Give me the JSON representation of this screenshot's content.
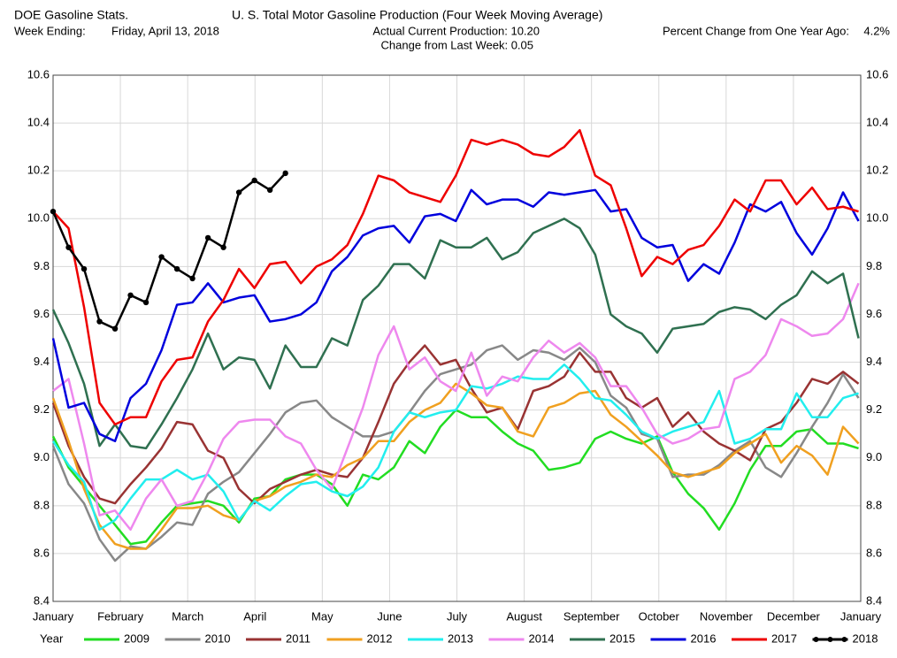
{
  "header": {
    "site": "DOE Gasoline Stats.",
    "week_label": "Week Ending:",
    "week_date": "Friday, April 13, 2018",
    "current": "Actual Current Production: 10.20",
    "change": "Change from Last Week: 0.05",
    "pct_label": "Percent Change from One Year Ago:",
    "pct_value": "4.2%"
  },
  "chart_data": {
    "type": "line",
    "title": "U. S. Total Motor Gasoline Production (Four Week Moving Average)",
    "legend_title": "Year",
    "grid": true,
    "xlim": [
      0,
      52.14
    ],
    "xticks": [
      {
        "value": 0,
        "label": "January"
      },
      {
        "value": 4.345,
        "label": "February"
      },
      {
        "value": 8.69,
        "label": "March"
      },
      {
        "value": 13.035,
        "label": "April"
      },
      {
        "value": 17.38,
        "label": "May"
      },
      {
        "value": 21.725,
        "label": "June"
      },
      {
        "value": 26.07,
        "label": "July"
      },
      {
        "value": 30.415,
        "label": "August"
      },
      {
        "value": 34.76,
        "label": "September"
      },
      {
        "value": 39.105,
        "label": "October"
      },
      {
        "value": 43.45,
        "label": "November"
      },
      {
        "value": 47.795,
        "label": "December"
      },
      {
        "value": 52.14,
        "label": "January"
      }
    ],
    "ylim": [
      8.4,
      10.6
    ],
    "yticks": [
      8.4,
      8.6,
      8.8,
      {
        "value": 9,
        "label": "9.0"
      },
      9.2,
      9.4,
      9.6,
      9.8,
      {
        "value": 10,
        "label": "10.0"
      },
      10.2,
      10.4,
      10.6
    ],
    "x": [
      0,
      1,
      2,
      3,
      4,
      5,
      6,
      7,
      8,
      9,
      10,
      11,
      12,
      13,
      14,
      15,
      16,
      17,
      18,
      19,
      20,
      21,
      22,
      23,
      24,
      25,
      26,
      27,
      28,
      29,
      30,
      31,
      32,
      33,
      34,
      35,
      36,
      37,
      38,
      39,
      40,
      41,
      42,
      43,
      44,
      45,
      46,
      47,
      48,
      49,
      50,
      51,
      52
    ],
    "series": [
      {
        "name": "2009",
        "color": "#22dd22",
        "values": [
          9.09,
          8.96,
          8.88,
          8.8,
          8.72,
          8.64,
          8.65,
          8.73,
          8.8,
          8.81,
          8.82,
          8.8,
          8.73,
          8.83,
          8.84,
          8.91,
          8.93,
          8.93,
          8.89,
          8.8,
          8.93,
          8.91,
          8.96,
          9.07,
          9.02,
          9.13,
          9.2,
          9.17,
          9.17,
          9.11,
          9.06,
          9.03,
          8.95,
          8.96,
          8.98,
          9.08,
          9.11,
          9.08,
          9.06,
          9.09,
          8.94,
          8.85,
          8.79,
          8.7,
          8.81,
          8.95,
          9.05,
          9.05,
          9.11,
          9.12,
          9.06,
          9.06,
          9.04
        ]
      },
      {
        "name": "2010",
        "color": "#888888",
        "values": [
          9.05,
          8.89,
          8.81,
          8.66,
          8.57,
          8.63,
          8.62,
          8.67,
          8.73,
          8.72,
          8.85,
          8.9,
          8.94,
          9.02,
          9.1,
          9.19,
          9.23,
          9.24,
          9.17,
          9.13,
          9.09,
          9.09,
          9.11,
          9.19,
          9.28,
          9.35,
          9.37,
          9.39,
          9.45,
          9.47,
          9.41,
          9.45,
          9.44,
          9.41,
          9.46,
          9.4,
          9.26,
          9.21,
          9.1,
          9.08,
          8.92,
          8.93,
          8.93,
          8.97,
          9.03,
          9.07,
          8.96,
          8.92,
          9.02,
          9.13,
          9.23,
          9.35,
          9.25
        ]
      },
      {
        "name": "2011",
        "color": "#993333",
        "values": [
          9.23,
          9.05,
          8.92,
          8.83,
          8.81,
          8.89,
          8.96,
          9.04,
          9.15,
          9.14,
          9.03,
          9.0,
          8.87,
          8.81,
          8.87,
          8.9,
          8.93,
          8.95,
          8.93,
          8.92,
          9.0,
          9.15,
          9.31,
          9.4,
          9.47,
          9.39,
          9.41,
          9.29,
          9.19,
          9.21,
          9.12,
          9.28,
          9.3,
          9.34,
          9.44,
          9.36,
          9.36,
          9.25,
          9.21,
          9.25,
          9.13,
          9.19,
          9.11,
          9.06,
          9.03,
          8.99,
          9.12,
          9.15,
          9.23,
          9.33,
          9.31,
          9.36,
          9.31
        ]
      },
      {
        "name": "2012",
        "color": "#f0a020",
        "values": [
          9.25,
          9.07,
          8.87,
          8.72,
          8.64,
          8.62,
          8.62,
          8.7,
          8.79,
          8.79,
          8.8,
          8.76,
          8.74,
          8.82,
          8.84,
          8.88,
          8.9,
          8.93,
          8.92,
          8.97,
          9.0,
          9.07,
          9.07,
          9.15,
          9.2,
          9.23,
          9.31,
          9.27,
          9.22,
          9.21,
          9.11,
          9.09,
          9.21,
          9.23,
          9.27,
          9.28,
          9.18,
          9.13,
          9.07,
          9.01,
          8.94,
          8.92,
          8.94,
          8.96,
          9.02,
          9.06,
          9.1,
          8.98,
          9.05,
          9.01,
          8.93,
          9.13,
          9.06
        ]
      },
      {
        "name": "2013",
        "color": "#22eeee",
        "values": [
          9.07,
          8.97,
          8.9,
          8.7,
          8.74,
          8.83,
          8.91,
          8.91,
          8.95,
          8.91,
          8.93,
          8.86,
          8.74,
          8.82,
          8.78,
          8.84,
          8.89,
          8.9,
          8.86,
          8.84,
          8.88,
          8.96,
          9.11,
          9.19,
          9.17,
          9.19,
          9.2,
          9.3,
          9.29,
          9.31,
          9.34,
          9.33,
          9.33,
          9.39,
          9.33,
          9.25,
          9.24,
          9.18,
          9.11,
          9.08,
          9.11,
          9.13,
          9.15,
          9.28,
          9.06,
          9.08,
          9.12,
          9.12,
          9.27,
          9.17,
          9.17,
          9.25,
          9.27
        ]
      },
      {
        "name": "2014",
        "color": "#ee88ee",
        "values": [
          9.28,
          9.33,
          9.06,
          8.76,
          8.78,
          8.7,
          8.83,
          8.91,
          8.8,
          8.82,
          8.94,
          9.08,
          9.15,
          9.16,
          9.16,
          9.09,
          9.06,
          8.95,
          8.87,
          9.04,
          9.21,
          9.43,
          9.55,
          9.37,
          9.42,
          9.32,
          9.28,
          9.44,
          9.26,
          9.34,
          9.32,
          9.42,
          9.49,
          9.44,
          9.48,
          9.42,
          9.3,
          9.3,
          9.21,
          9.1,
          9.06,
          9.08,
          9.12,
          9.13,
          9.33,
          9.36,
          9.43,
          9.58,
          9.55,
          9.51,
          9.52,
          9.58,
          9.73
        ]
      },
      {
        "name": "2015",
        "color": "#2f7050",
        "values": [
          9.62,
          9.48,
          9.31,
          9.05,
          9.14,
          9.05,
          9.04,
          9.14,
          9.25,
          9.37,
          9.52,
          9.37,
          9.42,
          9.41,
          9.29,
          9.47,
          9.38,
          9.38,
          9.5,
          9.47,
          9.66,
          9.72,
          9.81,
          9.81,
          9.75,
          9.91,
          9.88,
          9.88,
          9.92,
          9.83,
          9.86,
          9.94,
          9.97,
          10.0,
          9.96,
          9.85,
          9.6,
          9.55,
          9.52,
          9.44,
          9.54,
          9.55,
          9.56,
          9.61,
          9.63,
          9.62,
          9.58,
          9.64,
          9.68,
          9.78,
          9.73,
          9.77,
          9.5
        ]
      },
      {
        "name": "2016",
        "color": "#0000dd",
        "values": [
          9.5,
          9.21,
          9.23,
          9.1,
          9.07,
          9.25,
          9.31,
          9.45,
          9.64,
          9.65,
          9.73,
          9.65,
          9.67,
          9.68,
          9.57,
          9.58,
          9.6,
          9.65,
          9.78,
          9.84,
          9.93,
          9.96,
          9.97,
          9.9,
          10.01,
          10.02,
          9.99,
          10.12,
          10.06,
          10.08,
          10.08,
          10.05,
          10.11,
          10.1,
          10.11,
          10.12,
          10.03,
          10.04,
          9.92,
          9.88,
          9.89,
          9.74,
          9.81,
          9.77,
          9.9,
          10.06,
          10.03,
          10.07,
          9.94,
          9.85,
          9.96,
          10.11,
          9.99
        ]
      },
      {
        "name": "2017",
        "color": "#ee0000",
        "values": [
          10.03,
          9.96,
          9.63,
          9.23,
          9.14,
          9.17,
          9.17,
          9.32,
          9.41,
          9.42,
          9.57,
          9.66,
          9.79,
          9.71,
          9.81,
          9.82,
          9.73,
          9.8,
          9.83,
          9.89,
          10.02,
          10.18,
          10.16,
          10.11,
          10.09,
          10.07,
          10.18,
          10.33,
          10.31,
          10.33,
          10.31,
          10.27,
          10.26,
          10.3,
          10.37,
          10.18,
          10.14,
          9.96,
          9.76,
          9.84,
          9.81,
          9.87,
          9.89,
          9.97,
          10.08,
          10.03,
          10.16,
          10.16,
          10.06,
          10.13,
          10.04,
          10.05,
          10.03
        ]
      },
      {
        "name": "2018",
        "color": "#000000",
        "marker": true,
        "values": [
          10.03,
          9.88,
          9.79,
          9.57,
          9.54,
          9.68,
          9.65,
          9.84,
          9.79,
          9.75,
          9.92,
          9.88,
          10.11,
          10.16,
          10.12,
          10.19,
          null,
          null,
          null,
          null,
          null,
          null,
          null,
          null,
          null,
          null,
          null,
          null,
          null,
          null,
          null,
          null,
          null,
          null,
          null,
          null,
          null,
          null,
          null,
          null,
          null,
          null,
          null,
          null,
          null,
          null,
          null,
          null,
          null,
          null,
          null,
          null,
          null
        ]
      }
    ]
  }
}
